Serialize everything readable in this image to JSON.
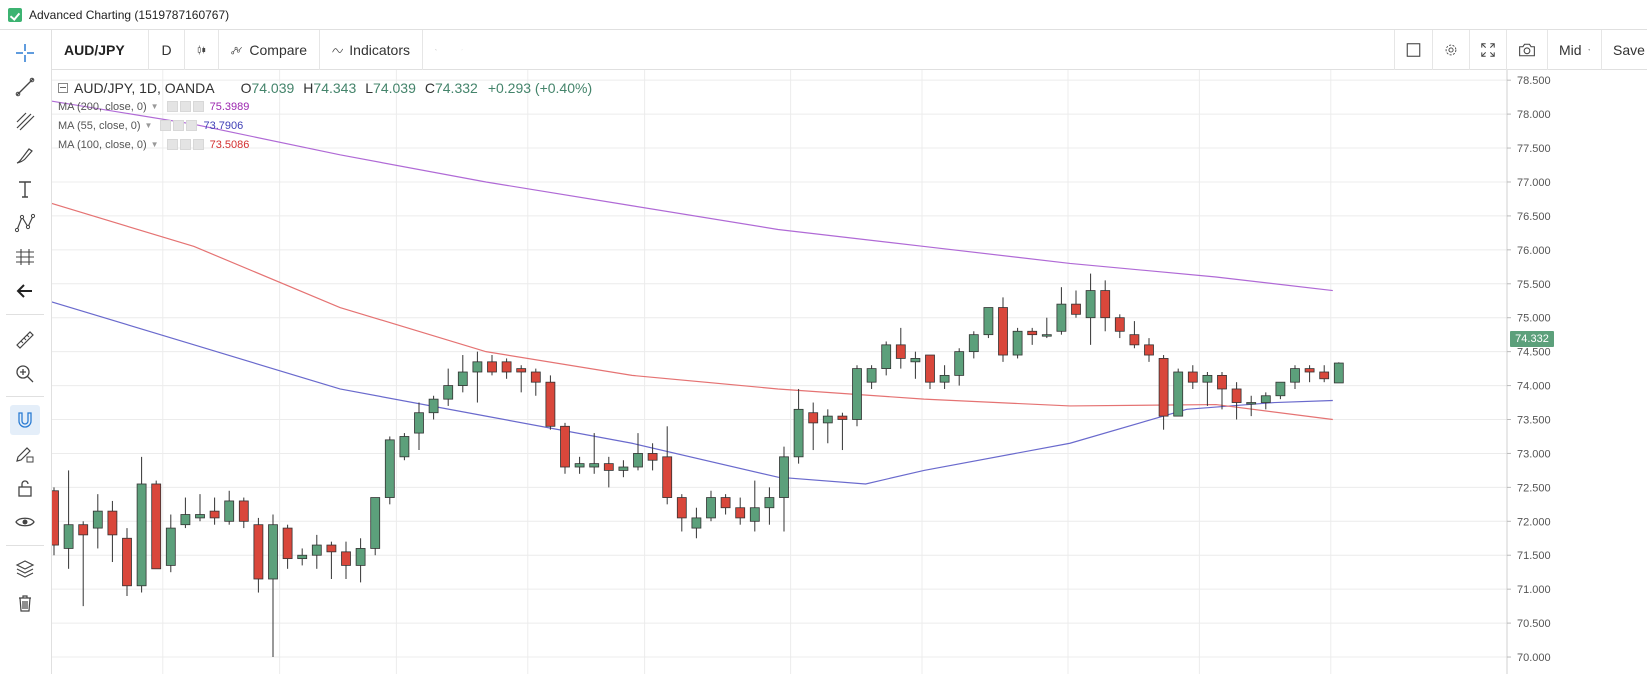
{
  "window": {
    "title": "Advanced Charting (1519787160767)"
  },
  "toolbar": {
    "symbol": "AUD/JPY",
    "interval": "D",
    "compare_label": "Compare",
    "indicators_label": "Indicators",
    "price_mode": "Mid",
    "save_label": "Save"
  },
  "legend": {
    "main_label": "AUD/JPY, 1D, OANDA",
    "open_prefix": "O",
    "open": "74.039",
    "high_prefix": "H",
    "high": "74.343",
    "low_prefix": "L",
    "low": "74.039",
    "close_prefix": "C",
    "close": "74.332",
    "change": "+0.293 (+0.40%)",
    "mas": [
      {
        "label": "MA (200, close, 0)",
        "value": "75.3989",
        "color": "#9c27b0"
      },
      {
        "label": "MA (55, close, 0)",
        "value": "73.7906",
        "color": "#3f3fb6"
      },
      {
        "label": "MA (100, close, 0)",
        "value": "73.5086",
        "color": "#d32f2f"
      }
    ]
  },
  "last_price_label": "74.332",
  "colors": {
    "up": "#5ca07b",
    "down": "#d9473b",
    "ma200": "#b06ad6",
    "ma55": "#6a6acd",
    "ma100": "#e57373",
    "grid": "#ececec"
  },
  "chart_data": {
    "type": "candlestick",
    "symbol": "AUD/JPY",
    "interval": "1D",
    "source": "OANDA",
    "ylim": [
      69.75,
      78.65
    ],
    "y_ticks": [
      "70.000",
      "70.500",
      "71.000",
      "71.500",
      "72.000",
      "72.500",
      "73.000",
      "73.500",
      "74.000",
      "74.500",
      "75.000",
      "75.500",
      "76.000",
      "76.500",
      "77.000",
      "77.500",
      "78.000",
      "78.500"
    ],
    "candles": [
      {
        "o": 72.45,
        "h": 72.5,
        "l": 71.5,
        "c": 71.65
      },
      {
        "o": 71.6,
        "h": 72.75,
        "l": 71.3,
        "c": 71.95
      },
      {
        "o": 71.95,
        "h": 72.0,
        "l": 70.75,
        "c": 71.8
      },
      {
        "o": 71.9,
        "h": 72.4,
        "l": 71.6,
        "c": 72.15
      },
      {
        "o": 72.15,
        "h": 72.3,
        "l": 71.4,
        "c": 71.8
      },
      {
        "o": 71.75,
        "h": 71.9,
        "l": 70.9,
        "c": 71.05
      },
      {
        "o": 71.05,
        "h": 72.95,
        "l": 70.95,
        "c": 72.55
      },
      {
        "o": 72.55,
        "h": 72.6,
        "l": 71.3,
        "c": 71.3
      },
      {
        "o": 71.35,
        "h": 72.1,
        "l": 71.25,
        "c": 71.9
      },
      {
        "o": 71.95,
        "h": 72.35,
        "l": 71.9,
        "c": 72.1
      },
      {
        "o": 72.05,
        "h": 72.4,
        "l": 72.0,
        "c": 72.1
      },
      {
        "o": 72.15,
        "h": 72.35,
        "l": 71.95,
        "c": 72.05
      },
      {
        "o": 72.0,
        "h": 72.45,
        "l": 71.95,
        "c": 72.3
      },
      {
        "o": 72.3,
        "h": 72.35,
        "l": 71.9,
        "c": 72.0
      },
      {
        "o": 71.95,
        "h": 72.05,
        "l": 70.95,
        "c": 71.15
      },
      {
        "o": 71.15,
        "h": 72.1,
        "l": 70.0,
        "c": 71.95
      },
      {
        "o": 71.9,
        "h": 71.95,
        "l": 71.3,
        "c": 71.45
      },
      {
        "o": 71.45,
        "h": 71.6,
        "l": 71.35,
        "c": 71.5
      },
      {
        "o": 71.5,
        "h": 71.8,
        "l": 71.3,
        "c": 71.65
      },
      {
        "o": 71.65,
        "h": 71.7,
        "l": 71.15,
        "c": 71.55
      },
      {
        "o": 71.55,
        "h": 71.7,
        "l": 71.15,
        "c": 71.35
      },
      {
        "o": 71.35,
        "h": 71.75,
        "l": 71.1,
        "c": 71.6
      },
      {
        "o": 71.6,
        "h": 72.35,
        "l": 71.5,
        "c": 72.35
      },
      {
        "o": 72.35,
        "h": 73.25,
        "l": 72.25,
        "c": 73.2
      },
      {
        "o": 72.95,
        "h": 73.3,
        "l": 72.9,
        "c": 73.25
      },
      {
        "o": 73.3,
        "h": 73.75,
        "l": 73.05,
        "c": 73.6
      },
      {
        "o": 73.6,
        "h": 73.85,
        "l": 73.5,
        "c": 73.8
      },
      {
        "o": 73.8,
        "h": 74.25,
        "l": 73.7,
        "c": 74.0
      },
      {
        "o": 74.0,
        "h": 74.45,
        "l": 73.9,
        "c": 74.2
      },
      {
        "o": 74.2,
        "h": 74.5,
        "l": 73.75,
        "c": 74.35
      },
      {
        "o": 74.35,
        "h": 74.45,
        "l": 74.15,
        "c": 74.2
      },
      {
        "o": 74.35,
        "h": 74.4,
        "l": 74.1,
        "c": 74.2
      },
      {
        "o": 74.25,
        "h": 74.3,
        "l": 73.9,
        "c": 74.2
      },
      {
        "o": 74.2,
        "h": 74.25,
        "l": 73.85,
        "c": 74.05
      },
      {
        "o": 74.05,
        "h": 74.15,
        "l": 73.35,
        "c": 73.4
      },
      {
        "o": 73.4,
        "h": 73.45,
        "l": 72.7,
        "c": 72.8
      },
      {
        "o": 72.8,
        "h": 72.95,
        "l": 72.7,
        "c": 72.85
      },
      {
        "o": 72.8,
        "h": 73.3,
        "l": 72.7,
        "c": 72.85
      },
      {
        "o": 72.85,
        "h": 72.95,
        "l": 72.5,
        "c": 72.75
      },
      {
        "o": 72.75,
        "h": 72.9,
        "l": 72.65,
        "c": 72.8
      },
      {
        "o": 72.8,
        "h": 73.3,
        "l": 72.75,
        "c": 73.0
      },
      {
        "o": 73.0,
        "h": 73.15,
        "l": 72.75,
        "c": 72.9
      },
      {
        "o": 72.95,
        "h": 73.4,
        "l": 72.25,
        "c": 72.35
      },
      {
        "o": 72.35,
        "h": 72.4,
        "l": 71.85,
        "c": 72.05
      },
      {
        "o": 71.9,
        "h": 72.2,
        "l": 71.75,
        "c": 72.05
      },
      {
        "o": 72.05,
        "h": 72.45,
        "l": 72.0,
        "c": 72.35
      },
      {
        "o": 72.35,
        "h": 72.4,
        "l": 72.1,
        "c": 72.2
      },
      {
        "o": 72.2,
        "h": 72.35,
        "l": 71.95,
        "c": 72.05
      },
      {
        "o": 72.0,
        "h": 72.6,
        "l": 71.85,
        "c": 72.2
      },
      {
        "o": 72.2,
        "h": 72.5,
        "l": 71.95,
        "c": 72.35
      },
      {
        "o": 72.35,
        "h": 73.1,
        "l": 71.85,
        "c": 72.95
      },
      {
        "o": 72.95,
        "h": 73.95,
        "l": 72.85,
        "c": 73.65
      },
      {
        "o": 73.6,
        "h": 73.75,
        "l": 73.05,
        "c": 73.45
      },
      {
        "o": 73.45,
        "h": 73.65,
        "l": 73.15,
        "c": 73.55
      },
      {
        "o": 73.55,
        "h": 73.6,
        "l": 73.05,
        "c": 73.5
      },
      {
        "o": 73.5,
        "h": 74.3,
        "l": 73.4,
        "c": 74.25
      },
      {
        "o": 74.05,
        "h": 74.3,
        "l": 73.95,
        "c": 74.25
      },
      {
        "o": 74.25,
        "h": 74.65,
        "l": 74.15,
        "c": 74.6
      },
      {
        "o": 74.6,
        "h": 74.85,
        "l": 74.25,
        "c": 74.4
      },
      {
        "o": 74.35,
        "h": 74.5,
        "l": 74.1,
        "c": 74.4
      },
      {
        "o": 74.45,
        "h": 74.45,
        "l": 73.95,
        "c": 74.05
      },
      {
        "o": 74.05,
        "h": 74.3,
        "l": 73.95,
        "c": 74.15
      },
      {
        "o": 74.15,
        "h": 74.55,
        "l": 74.0,
        "c": 74.5
      },
      {
        "o": 74.5,
        "h": 74.8,
        "l": 74.4,
        "c": 74.75
      },
      {
        "o": 74.75,
        "h": 75.15,
        "l": 74.7,
        "c": 75.15
      },
      {
        "o": 75.15,
        "h": 75.3,
        "l": 74.35,
        "c": 74.45
      },
      {
        "o": 74.45,
        "h": 74.85,
        "l": 74.4,
        "c": 74.8
      },
      {
        "o": 74.8,
        "h": 74.85,
        "l": 74.6,
        "c": 74.75
      },
      {
        "o": 74.75,
        "h": 75.0,
        "l": 74.7,
        "c": 74.75
      },
      {
        "o": 74.8,
        "h": 75.45,
        "l": 74.75,
        "c": 75.2
      },
      {
        "o": 75.2,
        "h": 75.4,
        "l": 75.0,
        "c": 75.05
      },
      {
        "o": 75.0,
        "h": 75.65,
        "l": 74.6,
        "c": 75.4
      },
      {
        "o": 75.4,
        "h": 75.55,
        "l": 74.8,
        "c": 75.0
      },
      {
        "o": 75.0,
        "h": 75.05,
        "l": 74.7,
        "c": 74.8
      },
      {
        "o": 74.75,
        "h": 74.95,
        "l": 74.55,
        "c": 74.6
      },
      {
        "o": 74.6,
        "h": 74.7,
        "l": 74.35,
        "c": 74.45
      },
      {
        "o": 74.4,
        "h": 74.45,
        "l": 73.35,
        "c": 73.55
      },
      {
        "o": 73.55,
        "h": 74.25,
        "l": 73.55,
        "c": 74.2
      },
      {
        "o": 74.2,
        "h": 74.3,
        "l": 73.95,
        "c": 74.05
      },
      {
        "o": 74.05,
        "h": 74.2,
        "l": 73.7,
        "c": 74.15
      },
      {
        "o": 74.15,
        "h": 74.2,
        "l": 73.65,
        "c": 73.95
      },
      {
        "o": 73.95,
        "h": 74.05,
        "l": 73.5,
        "c": 73.75
      },
      {
        "o": 73.75,
        "h": 73.85,
        "l": 73.55,
        "c": 73.75
      },
      {
        "o": 73.75,
        "h": 73.9,
        "l": 73.65,
        "c": 73.85
      },
      {
        "o": 73.85,
        "h": 74.05,
        "l": 73.8,
        "c": 74.05
      },
      {
        "o": 74.05,
        "h": 74.3,
        "l": 73.95,
        "c": 74.25
      },
      {
        "o": 74.25,
        "h": 74.3,
        "l": 74.05,
        "c": 74.2
      },
      {
        "o": 74.2,
        "h": 74.3,
        "l": 74.05,
        "c": 74.1
      },
      {
        "o": 74.039,
        "h": 74.343,
        "l": 74.039,
        "c": 74.332
      }
    ],
    "moving_averages": [
      {
        "name": "MA (200, close, 0)",
        "values_at": [
          [
            0,
            78.2
          ],
          [
            10,
            77.85
          ],
          [
            20,
            77.4
          ],
          [
            30,
            77.0
          ],
          [
            40,
            76.65
          ],
          [
            50,
            76.3
          ],
          [
            60,
            76.05
          ],
          [
            70,
            75.8
          ],
          [
            80,
            75.6
          ],
          [
            88,
            75.4
          ]
        ]
      },
      {
        "name": "MA (55, close, 0)",
        "values_at": [
          [
            0,
            75.25
          ],
          [
            10,
            74.6
          ],
          [
            20,
            73.95
          ],
          [
            30,
            73.55
          ],
          [
            40,
            73.15
          ],
          [
            50,
            72.65
          ],
          [
            56,
            72.55
          ],
          [
            60,
            72.75
          ],
          [
            70,
            73.15
          ],
          [
            78,
            73.65
          ],
          [
            84,
            73.75
          ],
          [
            88,
            73.78
          ]
        ]
      },
      {
        "name": "MA (100, close, 0)",
        "values_at": [
          [
            0,
            76.7
          ],
          [
            10,
            76.05
          ],
          [
            20,
            75.15
          ],
          [
            30,
            74.5
          ],
          [
            40,
            74.15
          ],
          [
            50,
            73.95
          ],
          [
            60,
            73.8
          ],
          [
            70,
            73.7
          ],
          [
            80,
            73.72
          ],
          [
            88,
            73.5
          ]
        ]
      }
    ]
  }
}
